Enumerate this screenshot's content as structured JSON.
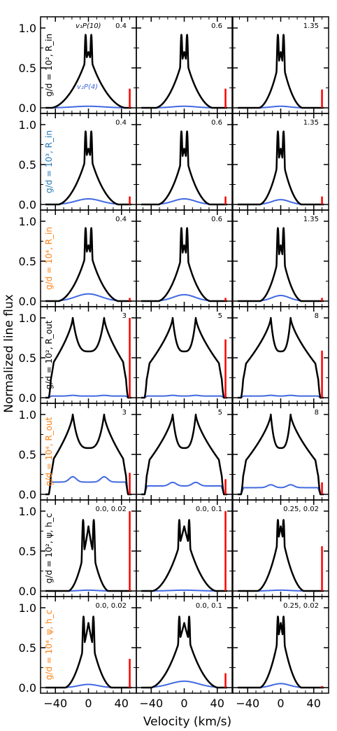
{
  "chart_data": {
    "type": "line",
    "xlabel": "Velocity (km/s)",
    "ylabel": "Normalized line flux",
    "xticks": [
      "−40",
      "0",
      "40"
    ],
    "yticks": [
      "0.0",
      "0.5",
      "1.0"
    ],
    "xlim": [
      -58,
      58
    ],
    "ylim": [
      -0.07,
      1.14
    ],
    "colors": {
      "v1": "#000000",
      "v2": "#4169e1",
      "ratio": "#ff0000",
      "black_label": "#000000",
      "blue_label": "#1f77b4",
      "orange_label": "#ff7f0e"
    },
    "legend": {
      "v1": "v₁P(10)",
      "v2": "v₂P(4)"
    },
    "rows": [
      {
        "label": "g/d = 10², R_in",
        "label_color": "black",
        "panels": [
          {
            "annotation": "0.4",
            "profile": "single",
            "width": 44,
            "peak_sep": 3.5,
            "v2_level": 0.02,
            "ratio": 0.24
          },
          {
            "annotation": "0.6",
            "profile": "single",
            "width": 34,
            "peak_sep": 3.5,
            "v2_level": 0.02,
            "ratio": 0.24
          },
          {
            "annotation": "1.35",
            "profile": "single",
            "width": 26,
            "peak_sep": 3.5,
            "v2_level": 0.02,
            "ratio": 0.23
          }
        ]
      },
      {
        "label": "g/d = 10³, R_in",
        "label_color": "blue",
        "panels": [
          {
            "annotation": "0.4",
            "profile": "single",
            "width": 36,
            "peak_sep": 3.5,
            "v2_level": 0.07,
            "ratio": 0.1
          },
          {
            "annotation": "0.6",
            "profile": "single",
            "width": 31,
            "peak_sep": 3.5,
            "v2_level": 0.07,
            "ratio": 0.1
          },
          {
            "annotation": "1.35",
            "profile": "single",
            "width": 25,
            "peak_sep": 3.5,
            "v2_level": 0.06,
            "ratio": 0.1
          }
        ]
      },
      {
        "label": "g/d = 10⁴, R_in",
        "label_color": "orange",
        "panels": [
          {
            "annotation": "0.4",
            "profile": "single",
            "width": 36,
            "peak_sep": 3.5,
            "v2_level": 0.09,
            "ratio": 0.04
          },
          {
            "annotation": "0.6",
            "profile": "single",
            "width": 31,
            "peak_sep": 3.5,
            "v2_level": 0.08,
            "ratio": 0.04
          },
          {
            "annotation": "1.35",
            "profile": "single",
            "width": 25,
            "peak_sep": 3.5,
            "v2_level": 0.07,
            "ratio": 0.04
          }
        ]
      },
      {
        "label": "g/d = 10², R_out",
        "label_color": "black",
        "panels": [
          {
            "annotation": "3",
            "profile": "double",
            "width": 48,
            "peak_sep": 19,
            "v2_level": 0.03,
            "ratio": 1.0
          },
          {
            "annotation": "5",
            "profile": "double",
            "width": 48,
            "peak_sep": 14,
            "v2_level": 0.03,
            "ratio": 0.73
          },
          {
            "annotation": "8",
            "profile": "double",
            "width": 48,
            "peak_sep": 12,
            "v2_level": 0.03,
            "ratio": 0.59
          }
        ]
      },
      {
        "label": "g/d = 10⁴, R_out",
        "label_color": "orange",
        "panels": [
          {
            "annotation": "3",
            "profile": "double",
            "width": 48,
            "peak_sep": 19,
            "v2_level": 0.22,
            "ratio": 0.27
          },
          {
            "annotation": "5",
            "profile": "double",
            "width": 48,
            "peak_sep": 14,
            "v2_level": 0.15,
            "ratio": 0.19
          },
          {
            "annotation": "8",
            "profile": "double",
            "width": 48,
            "peak_sep": 12,
            "v2_level": 0.12,
            "ratio": 0.15
          }
        ]
      },
      {
        "label": "g/d = 10², ψ, h_c",
        "label_color": "black",
        "panels": [
          {
            "annotation": "0.0, 0.02",
            "profile": "mid",
            "width": 24,
            "peak_sep": 6.5,
            "v2_level": 0.01,
            "ratio": 1.0
          },
          {
            "annotation": "0.0, 0.1",
            "profile": "mid",
            "width": 38,
            "peak_sep": 6,
            "v2_level": 0.01,
            "ratio": 1.0
          },
          {
            "annotation": "0.25, 0.02",
            "profile": "mid",
            "width": 28,
            "peak_sep": 3.5,
            "v2_level": 0.01,
            "ratio": 0.56
          }
        ]
      },
      {
        "label": "g/d = 10⁴, ψ, h_c",
        "label_color": "orange",
        "panels": [
          {
            "annotation": "0.0, 0.02",
            "profile": "mid",
            "width": 28,
            "peak_sep": 6,
            "v2_level": 0.04,
            "ratio": 0.36
          },
          {
            "annotation": "0.0, 0.1",
            "profile": "mid",
            "width": 40,
            "peak_sep": 6,
            "v2_level": 0.08,
            "ratio": 0.18
          },
          {
            "annotation": "0.25, 0.02",
            "profile": "mid",
            "width": 25,
            "peak_sep": 3.5,
            "v2_level": 0.05,
            "ratio": 0.02
          }
        ]
      }
    ]
  }
}
